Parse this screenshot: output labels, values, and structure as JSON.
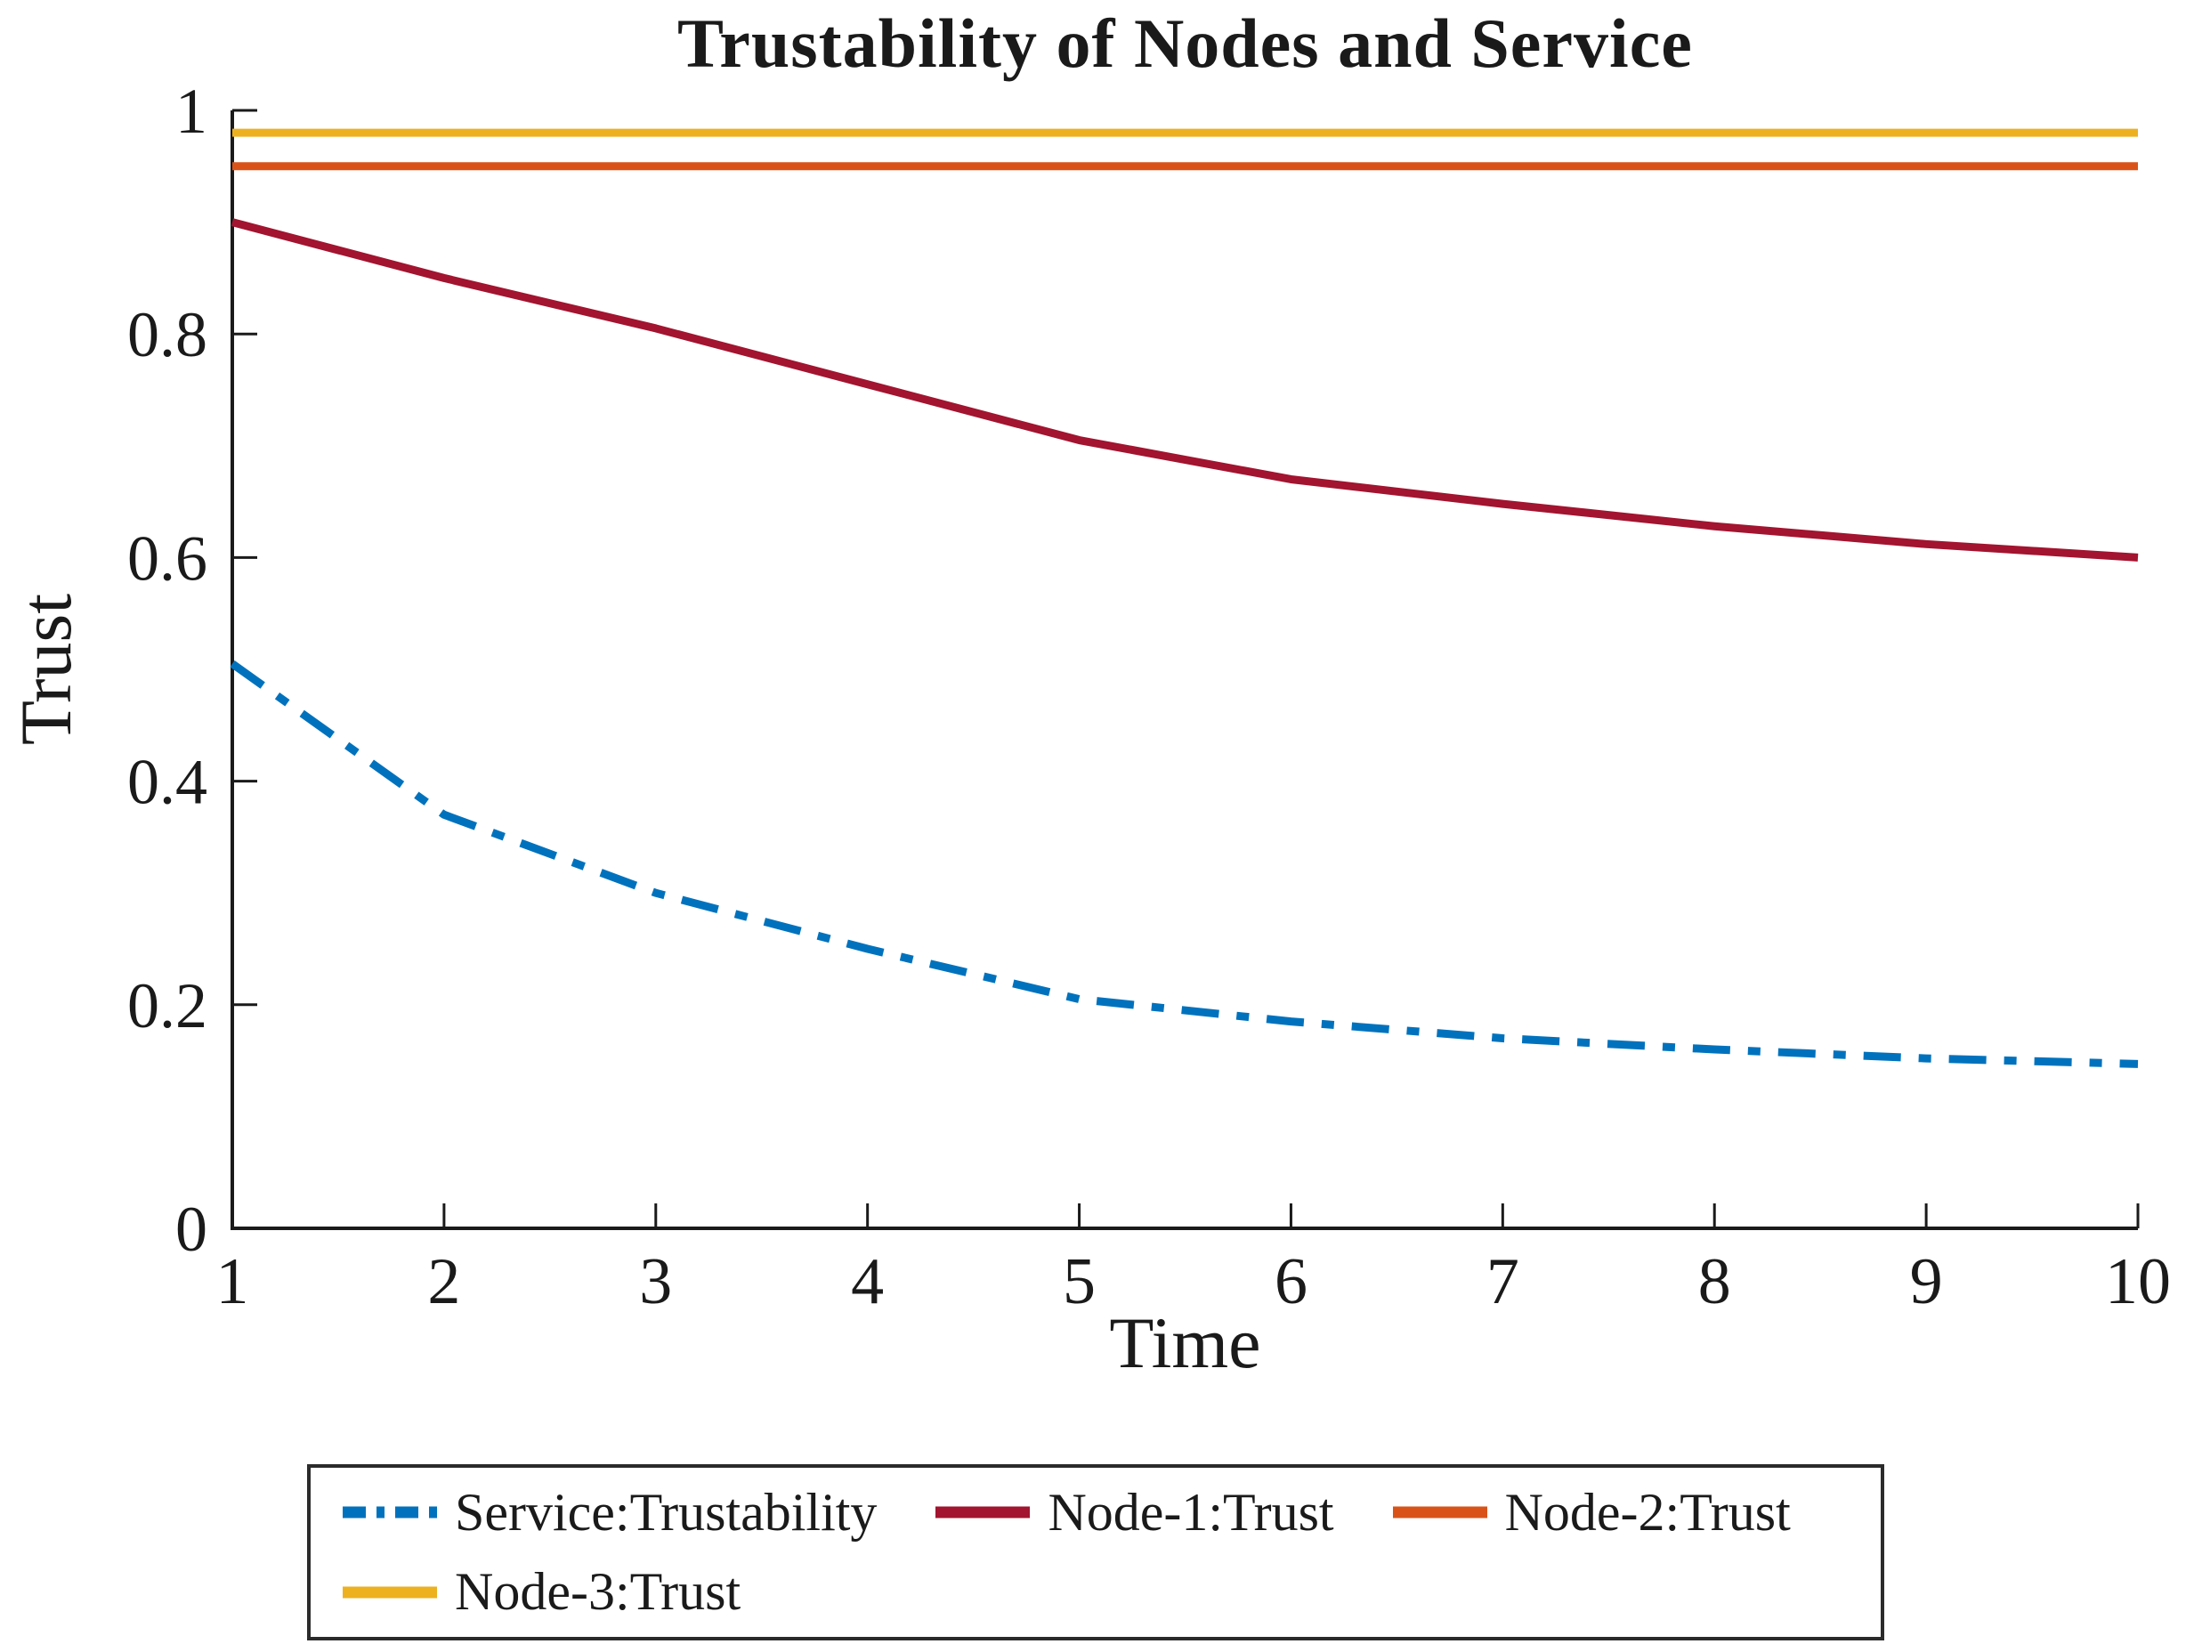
{
  "title": "Trustability of Nodes and Service",
  "chart_data": {
    "type": "line",
    "title": "Trustability of Nodes and Service",
    "xlabel": "Time",
    "ylabel": "Trust",
    "x": [
      1,
      2,
      3,
      4,
      5,
      6,
      7,
      8,
      9,
      10
    ],
    "xlim": [
      1,
      10
    ],
    "ylim": [
      0,
      1
    ],
    "x_ticks": [
      "1",
      "2",
      "3",
      "4",
      "5",
      "6",
      "7",
      "8",
      "9",
      "10"
    ],
    "y_ticks": [
      "0",
      "0.2",
      "0.4",
      "0.6",
      "0.8",
      "1"
    ],
    "grid": false,
    "legend_position": "below-chart-box",
    "series": [
      {
        "name": "Service:Trustability",
        "color": "#0072BD",
        "style": "dash-dot",
        "values": [
          0.505,
          0.37,
          0.3,
          0.25,
          0.205,
          0.185,
          0.17,
          0.16,
          0.152,
          0.147
        ]
      },
      {
        "name": "Node-1:Trust",
        "color": "#A2142F",
        "style": "solid",
        "values": [
          0.9,
          0.85,
          0.805,
          0.755,
          0.705,
          0.67,
          0.648,
          0.628,
          0.612,
          0.6
        ]
      },
      {
        "name": "Node-2:Trust",
        "color": "#D95319",
        "style": "solid",
        "values": [
          0.95,
          0.95,
          0.95,
          0.95,
          0.95,
          0.95,
          0.95,
          0.95,
          0.95,
          0.95
        ]
      },
      {
        "name": "Node-3:Trust",
        "color": "#EDB120",
        "style": "solid",
        "values": [
          0.98,
          0.98,
          0.98,
          0.98,
          0.98,
          0.98,
          0.98,
          0.98,
          0.98,
          0.98
        ]
      }
    ]
  }
}
